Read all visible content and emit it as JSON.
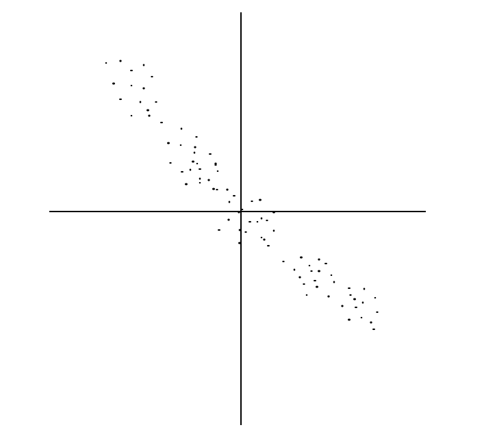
{
  "chart_data": {
    "type": "scatter",
    "title": "",
    "xlabel": "",
    "ylabel": "",
    "grid": false,
    "legend": "none",
    "xlim": [
      -280,
      270
    ],
    "ylim": [
      -312,
      291
    ],
    "axis_color": "#000000",
    "point_color": "#000000",
    "points": [
      {
        "x": -197,
        "y": 217
      },
      {
        "x": -176,
        "y": 220
      },
      {
        "x": -160,
        "y": 206
      },
      {
        "x": -142,
        "y": 214
      },
      {
        "x": -130,
        "y": 197
      },
      {
        "x": -186,
        "y": 187
      },
      {
        "x": -160,
        "y": 184
      },
      {
        "x": -142,
        "y": 180
      },
      {
        "x": -176,
        "y": 164
      },
      {
        "x": -147,
        "y": 160
      },
      {
        "x": -124,
        "y": 160
      },
      {
        "x": -136,
        "y": 148
      },
      {
        "x": -160,
        "y": 140
      },
      {
        "x": -134,
        "y": 140
      },
      {
        "x": -116,
        "y": 130
      },
      {
        "x": -87,
        "y": 121
      },
      {
        "x": -65,
        "y": 109
      },
      {
        "x": -106,
        "y": 100
      },
      {
        "x": -88,
        "y": 97
      },
      {
        "x": -67,
        "y": 94
      },
      {
        "x": -45,
        "y": 84
      },
      {
        "x": -68,
        "y": 86
      },
      {
        "x": -103,
        "y": 71
      },
      {
        "x": -70,
        "y": 73
      },
      {
        "x": -64,
        "y": 70
      },
      {
        "x": -37,
        "y": 70
      },
      {
        "x": -60,
        "y": 62
      },
      {
        "x": -74,
        "y": 61
      },
      {
        "x": -37,
        "y": 68
      },
      {
        "x": -80,
        "y": 40
      },
      {
        "x": -60,
        "y": 42
      },
      {
        "x": -47,
        "y": 46
      },
      {
        "x": -86,
        "y": 58
      },
      {
        "x": -60,
        "y": 48
      },
      {
        "x": -35,
        "y": 32
      },
      {
        "x": -40,
        "y": 33
      },
      {
        "x": -34,
        "y": 59
      },
      {
        "x": -20,
        "y": 32
      },
      {
        "x": -10,
        "y": 23
      },
      {
        "x": -17,
        "y": 14
      },
      {
        "x": 16,
        "y": 15
      },
      {
        "x": 28,
        "y": 17
      },
      {
        "x": 2,
        "y": 3
      },
      {
        "x": -3,
        "y": -1
      },
      {
        "x": 13,
        "y": -15
      },
      {
        "x": 30,
        "y": -10
      },
      {
        "x": 38,
        "y": -13
      },
      {
        "x": 48,
        "y": -1
      },
      {
        "x": 24,
        "y": -15
      },
      {
        "x": -18,
        "y": -12
      },
      {
        "x": -32,
        "y": -27
      },
      {
        "x": -2,
        "y": -27
      },
      {
        "x": 7,
        "y": -30
      },
      {
        "x": -2,
        "y": -46
      },
      {
        "x": 30,
        "y": -38
      },
      {
        "x": 34,
        "y": -41
      },
      {
        "x": 40,
        "y": -50
      },
      {
        "x": 48,
        "y": -28
      },
      {
        "x": 62,
        "y": -73
      },
      {
        "x": 88,
        "y": -67
      },
      {
        "x": 100,
        "y": -79
      },
      {
        "x": 114,
        "y": -70
      },
      {
        "x": 124,
        "y": -76
      },
      {
        "x": 78,
        "y": -85
      },
      {
        "x": 103,
        "y": -87
      },
      {
        "x": 114,
        "y": -87
      },
      {
        "x": 132,
        "y": -93
      },
      {
        "x": 86,
        "y": -96
      },
      {
        "x": 108,
        "y": -101
      },
      {
        "x": 136,
        "y": -103
      },
      {
        "x": 92,
        "y": -106
      },
      {
        "x": 111,
        "y": -110
      },
      {
        "x": 96,
        "y": -122
      },
      {
        "x": 128,
        "y": -124
      },
      {
        "x": 158,
        "y": -112
      },
      {
        "x": 180,
        "y": -113
      },
      {
        "x": 160,
        "y": -122
      },
      {
        "x": 166,
        "y": -128
      },
      {
        "x": 196,
        "y": -126
      },
      {
        "x": 148,
        "y": -138
      },
      {
        "x": 168,
        "y": -140
      },
      {
        "x": 178,
        "y": -133
      },
      {
        "x": 199,
        "y": -147
      },
      {
        "x": 158,
        "y": -158
      },
      {
        "x": 176,
        "y": -155
      },
      {
        "x": 190,
        "y": -162
      },
      {
        "x": 194,
        "y": -172
      }
    ]
  }
}
